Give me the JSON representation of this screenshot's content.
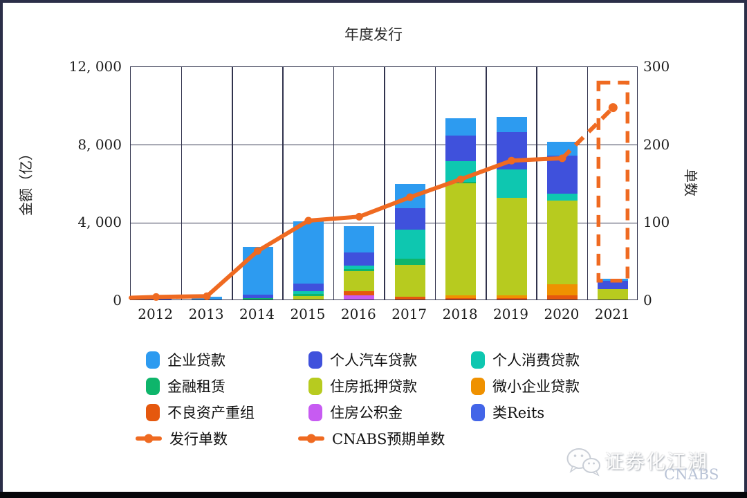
{
  "chart_data": {
    "type": "stacked-bar+line",
    "title": "年度发行",
    "categories": [
      "2012",
      "2013",
      "2014",
      "2015",
      "2016",
      "2017",
      "2018",
      "2019",
      "2020",
      "2021"
    ],
    "left_axis": {
      "label": "金额（亿）",
      "tick_labels": [
        "12, 000",
        "8, 000",
        "4, 000",
        "0"
      ],
      "tick_values": [
        12000,
        8000,
        4000,
        0
      ],
      "max": 12000
    },
    "right_axis": {
      "label": "单数",
      "tick_labels": [
        "300",
        "200",
        "100",
        "0"
      ],
      "tick_values": [
        300,
        200,
        100,
        0
      ],
      "max": 300
    },
    "bar_series": [
      {
        "name": "企业贷款",
        "color": "#2D9BF0",
        "values": [
          140,
          130,
          2450,
          3180,
          1330,
          1250,
          890,
          780,
          700,
          100
        ]
      },
      {
        "name": "个人汽车贷款",
        "color": "#3F51DC",
        "values": [
          30,
          0,
          200,
          390,
          680,
          1100,
          1320,
          1950,
          1950,
          430
        ]
      },
      {
        "name": "个人消费贷款",
        "color": "#0EC7B0",
        "values": [
          0,
          0,
          0,
          140,
          170,
          1490,
          1070,
          1450,
          360,
          0
        ]
      },
      {
        "name": "金融租赁",
        "color": "#0EB56B",
        "values": [
          0,
          0,
          60,
          110,
          140,
          300,
          50,
          0,
          0,
          0
        ]
      },
      {
        "name": "住房抵押贷款",
        "color": "#B7CB1F",
        "values": [
          0,
          0,
          0,
          180,
          1030,
          1650,
          5750,
          5000,
          4300,
          520
        ]
      },
      {
        "name": "微小企业贷款",
        "color": "#EF9100",
        "values": [
          0,
          0,
          0,
          0,
          0,
          0,
          150,
          150,
          560,
          0
        ]
      },
      {
        "name": "不良资产重组",
        "color": "#E5580E",
        "values": [
          0,
          0,
          0,
          0,
          180,
          130,
          80,
          60,
          210,
          0
        ]
      },
      {
        "name": "住房公积金",
        "color": "#C75BF2",
        "values": [
          0,
          0,
          0,
          0,
          230,
          0,
          0,
          0,
          0,
          0
        ]
      },
      {
        "name": "类Reits",
        "color": "#4365E8",
        "values": [
          0,
          0,
          0,
          0,
          0,
          0,
          0,
          0,
          0,
          0
        ]
      }
    ],
    "line_series": {
      "name": "发行单数",
      "color": "#EF6A21",
      "values": [
        5,
        6,
        64,
        103,
        108,
        133,
        156,
        180,
        183
      ],
      "covers_categories": [
        "2012",
        "2013",
        "2014",
        "2015",
        "2016",
        "2017",
        "2018",
        "2019",
        "2020"
      ],
      "left_edge_value": 4
    },
    "expected_series": {
      "name": "CNABS预期单数",
      "color": "#EF6A21",
      "year": "2021",
      "value": 248,
      "dash_box": {
        "top_value": 280,
        "bottom_value": 26
      }
    },
    "grid": "on",
    "legend_position": "bottom-left"
  },
  "watermark": {
    "text": "证券化江湖",
    "subtext": "CNABS",
    "icon": "wechat-icon"
  }
}
